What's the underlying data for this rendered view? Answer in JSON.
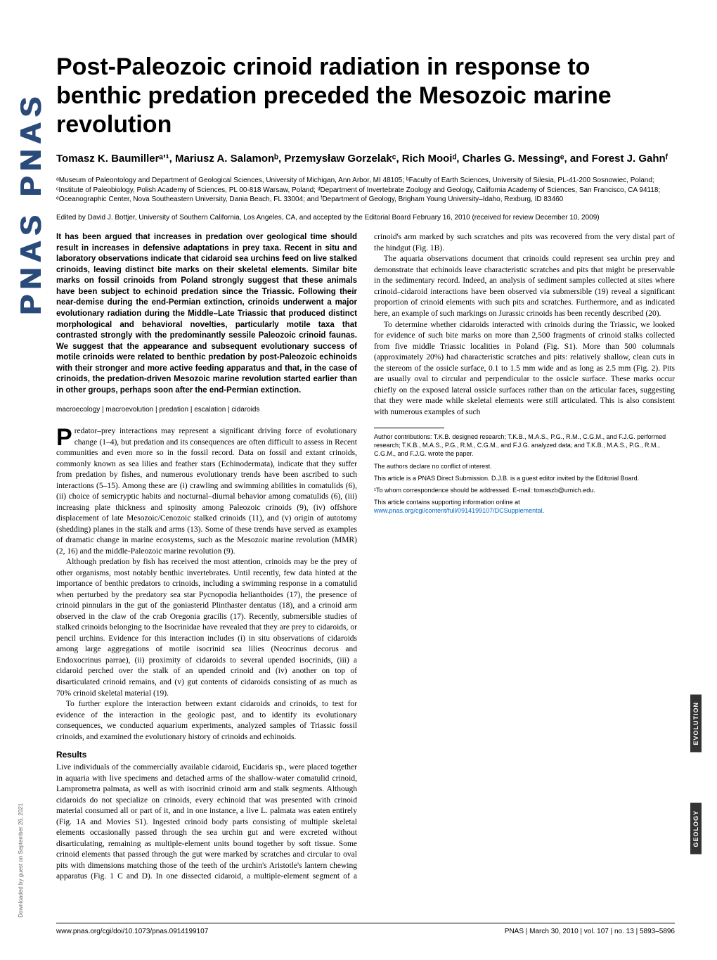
{
  "logo": "PNAS PNAS",
  "download_note": "Downloaded by guest on September 26, 2021",
  "title": "Post-Paleozoic crinoid radiation in response to benthic predation preceded the Mesozoic marine revolution",
  "authors": "Tomasz K. Baumillerᵃ'¹, Mariusz A. Salamonᵇ, Przemysław Gorzelakᶜ, Rich Mooiᵈ, Charles G. Messingᵉ, and Forest J. Gahnᶠ",
  "affiliations": "ᵃMuseum of Paleontology and Department of Geological Sciences, University of Michigan, Ann Arbor, MI 48105; ᵇFaculty of Earth Sciences, University of Silesia, PL-41-200 Sosnowiec, Poland; ᶜInstitute of Paleobiology, Polish Academy of Sciences, PL 00-818 Warsaw, Poland; ᵈDepartment of Invertebrate Zoology and Geology, California Academy of Sciences, San Francisco, CA 94118; ᵉOceanographic Center, Nova Southeastern University, Dania Beach, FL 33004; and ᶠDepartment of Geology, Brigham Young University–Idaho, Rexburg, ID 83460",
  "edited": "Edited by David J. Bottjer, University of Southern California, Los Angeles, CA, and accepted by the Editorial Board February 16, 2010 (received for review December 10, 2009)",
  "abstract": "It has been argued that increases in predation over geological time should result in increases in defensive adaptations in prey taxa. Recent in situ and laboratory observations indicate that cidaroid sea urchins feed on live stalked crinoids, leaving distinct bite marks on their skeletal elements. Similar bite marks on fossil crinoids from Poland strongly suggest that these animals have been subject to echinoid predation since the Triassic. Following their near-demise during the end-Permian extinction, crinoids underwent a major evolutionary radiation during the Middle–Late Triassic that produced distinct morphological and behavioral novelties, particularly motile taxa that contrasted strongly with the predominantly sessile Paleozoic crinoid faunas. We suggest that the appearance and subsequent evolutionary success of motile crinoids were related to benthic predation by post-Paleozoic echinoids with their stronger and more active feeding apparatus and that, in the case of crinoids, the predation-driven Mesozoic marine revolution started earlier than in other groups, perhaps soon after the end-Permian extinction.",
  "keywords": "macroecology | macroevolution | predation | escalation | cidaroids",
  "body_para_1": "redator–prey interactions may represent a significant driving force of evolutionary change (1–4), but predation and its consequences are often difficult to assess in Recent communities and even more so in the fossil record. Data on fossil and extant crinoids, commonly known as sea lilies and feather stars (Echinodermata), indicate that they suffer from predation by fishes, and numerous evolutionary trends have been ascribed to such interactions (5–15). Among these are (i) crawling and swimming abilities in comatulids (6), (ii) choice of semicryptic habits and nocturnal–diurnal behavior among comatulids (6), (iii) increasing plate thickness and spinosity among Paleozoic crinoids (9), (iv) offshore displacement of late Mesozoic/Cenozoic stalked crinoids (11), and (v) origin of autotomy (shedding) planes in the stalk and arms (13). Some of these trends have served as examples of dramatic change in marine ecosystems, such as the Mesozoic marine revolution (MMR) (2, 16) and the middle-Paleozoic marine revolution (9).",
  "body_para_2": "Although predation by fish has received the most attention, crinoids may be the prey of other organisms, most notably benthic invertebrates. Until recently, few data hinted at the importance of benthic predators to crinoids, including a swimming response in a comatulid when perturbed by the predatory sea star Pycnopodia helianthoides (17), the presence of crinoid pinnulars in the gut of the goniasterid Plinthaster dentatus (18), and a crinoid arm observed in the claw of the crab Oregonia gracilis (17). Recently, submersible studies of stalked crinoids belonging to the Isocrinidae have revealed that they are prey to cidaroids, or pencil urchins. Evidence for this interaction includes (i) in situ observations of cidaroids among large aggregations of motile isocrinid sea lilies (Neocrinus decorus and Endoxocrinus parrae), (ii) proximity of cidaroids to several upended isocrinids, (iii) a cidaroid perched over the stalk of an upended crinoid and (iv) another on top of disarticulated crinoid remains, and (v) gut contents of cidaroids consisting of as much as 70% crinoid skeletal material (19).",
  "body_para_3": "To further explore the interaction between extant cidaroids and crinoids, to test for evidence of the interaction in the geologic past, and to identify its evolutionary consequences, we conducted aquarium experiments, analyzed samples of Triassic fossil crinoids, and examined the evolutionary history of crinoids and echinoids.",
  "results_heading": "Results",
  "results_para_1": "Live individuals of the commercially available cidaroid, Eucidaris sp., were placed together in aquaria with live specimens and detached arms of the shallow-water comatulid crinoid, Lamprometra palmata, as well as with isocrinid crinoid arm and stalk segments. Although cidaroids do not specialize on crinoids, every echinoid that was presented with crinoid material consumed all or part of it, and in one instance, a live L. palmata was eaten entirely (Fig. 1A and Movies S1). Ingested crinoid body parts consisting of multiple skeletal elements occasionally passed through the sea urchin gut and were excreted without disarticulating, remaining as multiple-element units bound together by soft tissue. Some crinoid elements that passed through the gut were marked by scratches and circular to oval pits with dimensions matching those of the teeth of the urchin's Aristotle's lantern chewing apparatus (Fig. 1 C and D). In one dissected cidaroid, a multiple-element segment of a crinoid's arm marked by such scratches and pits was recovered from the very distal part of the hindgut (Fig. 1B).",
  "results_para_2": "The aquaria observations document that crinoids could represent sea urchin prey and demonstrate that echinoids leave characteristic scratches and pits that might be preservable in the sedimentary record. Indeed, an analysis of sediment samples collected at sites where crinoid–cidaroid interactions have been observed via submersible (19) reveal a significant proportion of crinoid elements with such pits and scratches. Furthermore, and as indicated here, an example of such markings on Jurassic crinoids has been recently described (20).",
  "results_para_3": "To determine whether cidaroids interacted with crinoids during the Triassic, we looked for evidence of such bite marks on more than 2,500 fragments of crinoid stalks collected from five middle Triassic localities in Poland (Fig. S1). More than 500 columnals (approximately 20%) had characteristic scratches and pits: relatively shallow, clean cuts in the stereom of the ossicle surface, 0.1 to 1.5 mm wide and as long as 2.5 mm (Fig. 2). Pits are usually oval to circular and perpendicular to the ossicle surface. These marks occur chiefly on the exposed lateral ossicle surfaces rather than on the articular faces, suggesting that they were made while skeletal elements were still articulated. This is also consistent with numerous examples of such",
  "footnotes": {
    "author_contrib": "Author contributions: T.K.B. designed research; T.K.B., M.A.S., P.G., R.M., C.G.M., and F.J.G. performed research; T.K.B., M.A.S., P.G., R.M., C.G.M., and F.J.G. analyzed data; and T.K.B., M.A.S., P.G., R.M., C.G.M., and F.J.G. wrote the paper.",
    "conflict": "The authors declare no conflict of interest.",
    "direct_sub": "This article is a PNAS Direct Submission. D.J.B. is a guest editor invited by the Editorial Board.",
    "corresp": "¹To whom correspondence should be addressed. E-mail: tomaszb@umich.edu.",
    "supporting_prefix": "This article contains supporting information online at ",
    "supporting_url": "www.pnas.org/cgi/content/full/0914199107/DCSupplemental",
    "supporting_suffix": "."
  },
  "footer": {
    "doi": "www.pnas.org/cgi/doi/10.1073/pnas.0914199107",
    "citation": "PNAS  |  March 30, 2010  |  vol. 107  |  no. 13  |  5893–5896"
  },
  "side_labels": {
    "evolution": "EVOLUTION",
    "geology": "GEOLOGY"
  },
  "link_color": "#0066cc",
  "fonts": {
    "sans": "Arial, Helvetica, sans-serif",
    "serif": "Georgia, 'Times New Roman', serif",
    "title_size": 34,
    "author_size": 15,
    "affil_size": 10,
    "abstract_size": 11.5,
    "body_size": 11.5,
    "footnote_size": 9,
    "footer_size": 10
  },
  "colors": {
    "text": "#000000",
    "logo": "#2a4a7a",
    "background": "#ffffff",
    "side_label_bg": "#333333",
    "side_label_fg": "#ffffff"
  }
}
